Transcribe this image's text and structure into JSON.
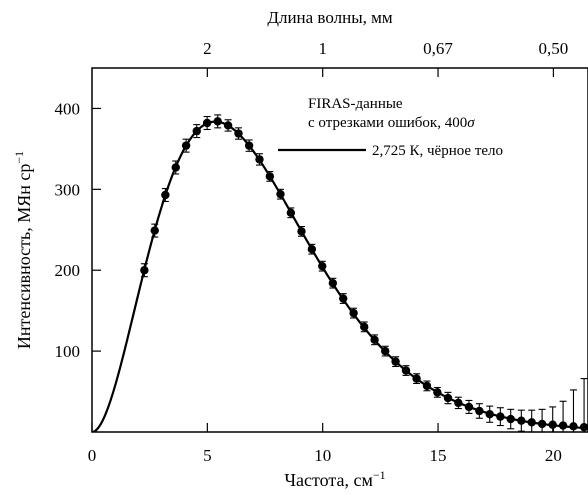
{
  "chart_data": {
    "type": "scatter",
    "xlabel": "Частота, см",
    "xlabel_sup": "−1",
    "ylabel": "Интенсивность, МЯн ср",
    "ylabel_sup": "−1",
    "x2label": "Длина волны, мм",
    "xlim": [
      0,
      21.5
    ],
    "ylim": [
      0,
      450
    ],
    "xticks": [
      0,
      5,
      10,
      15,
      20
    ],
    "yticks": [
      100,
      200,
      300,
      400
    ],
    "x2ticks": [
      {
        "label": "2",
        "x": 5
      },
      {
        "label": "1",
        "x": 10
      },
      {
        "label": "0,67",
        "x": 15
      },
      {
        "label": "0,50",
        "x": 20
      }
    ],
    "legend": {
      "data_label_line1": "FIRAS-данные",
      "data_label_line2": "с отрезками ошибок, 400",
      "data_label_sigma": "σ",
      "model_label": "2,725 К, чёрное тело"
    },
    "series": [
      {
        "name": "FIRAS-данные",
        "kind": "points_with_errorbars",
        "x": [
          2.27,
          2.72,
          3.18,
          3.63,
          4.08,
          4.54,
          4.99,
          5.45,
          5.9,
          6.35,
          6.81,
          7.26,
          7.71,
          8.17,
          8.62,
          9.08,
          9.53,
          9.98,
          10.44,
          10.89,
          11.34,
          11.8,
          12.25,
          12.71,
          13.16,
          13.61,
          14.07,
          14.52,
          14.97,
          15.43,
          15.88,
          16.34,
          16.79,
          17.24,
          17.7,
          18.15,
          18.61,
          19.06,
          19.51,
          19.97,
          20.42,
          20.87,
          21.33
        ],
        "y": [
          200,
          249,
          293,
          327,
          354,
          372,
          382,
          384,
          379,
          369,
          354,
          337,
          316,
          294,
          271,
          248,
          226,
          205,
          184,
          165,
          147,
          130,
          114,
          100,
          87,
          76,
          66,
          57,
          49,
          42,
          36,
          31,
          26,
          22,
          19,
          16,
          14,
          12,
          10,
          9,
          8,
          7,
          6
        ],
        "err": [
          8,
          8,
          8,
          8,
          8,
          8,
          8,
          8,
          7,
          7,
          7,
          7,
          6,
          6,
          6,
          6,
          6,
          6,
          6,
          6,
          6,
          6,
          6,
          6,
          6,
          6,
          6,
          6,
          6,
          7,
          7,
          8,
          9,
          10,
          11,
          12,
          13,
          15,
          18,
          22,
          30,
          45,
          60
        ]
      },
      {
        "name": "2,725 К, чёрное тело",
        "kind": "curve",
        "temperature_K": 2.725,
        "formula": "planck_nu_MJy_sr"
      }
    ]
  }
}
